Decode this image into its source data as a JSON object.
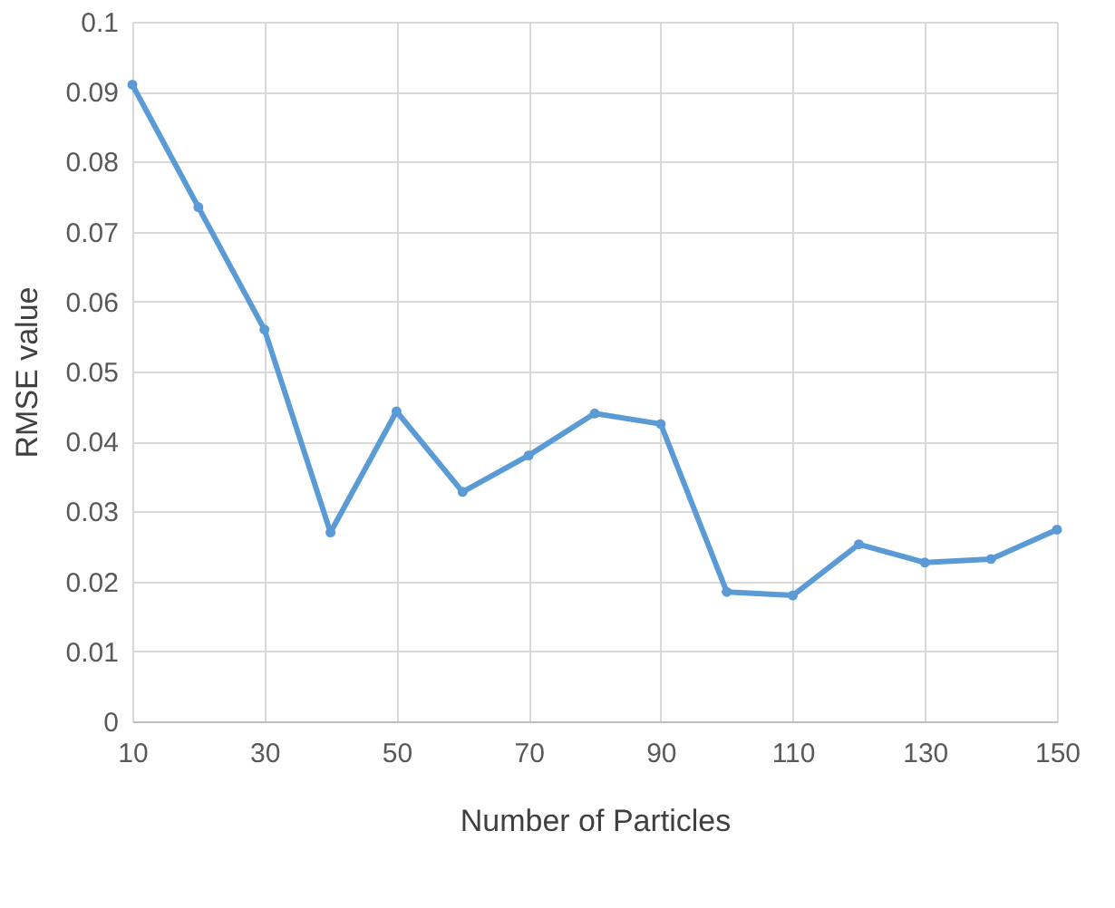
{
  "chart_data": {
    "type": "line",
    "xlabel": "Number of Particles",
    "ylabel": "RMSE value",
    "x": [
      10,
      20,
      30,
      40,
      50,
      60,
      70,
      80,
      90,
      100,
      110,
      120,
      130,
      140,
      150
    ],
    "series": [
      {
        "color": "#5b9bd5",
        "values": [
          0.091,
          0.0735,
          0.056,
          0.027,
          0.0443,
          0.0328,
          0.038,
          0.044,
          0.0425,
          0.0185,
          0.018,
          0.0253,
          0.0227,
          0.0232,
          0.0274
        ]
      }
    ],
    "xlim": [
      10,
      150
    ],
    "xticks": [
      10,
      30,
      50,
      70,
      90,
      110,
      130,
      150
    ],
    "ylim": [
      0,
      0.1
    ],
    "yticks": [
      0,
      0.01,
      0.02,
      0.03,
      0.04,
      0.05,
      0.06,
      0.07,
      0.08,
      0.09,
      0.1
    ],
    "grid": true,
    "marker": "circle",
    "line_style": "solid"
  }
}
